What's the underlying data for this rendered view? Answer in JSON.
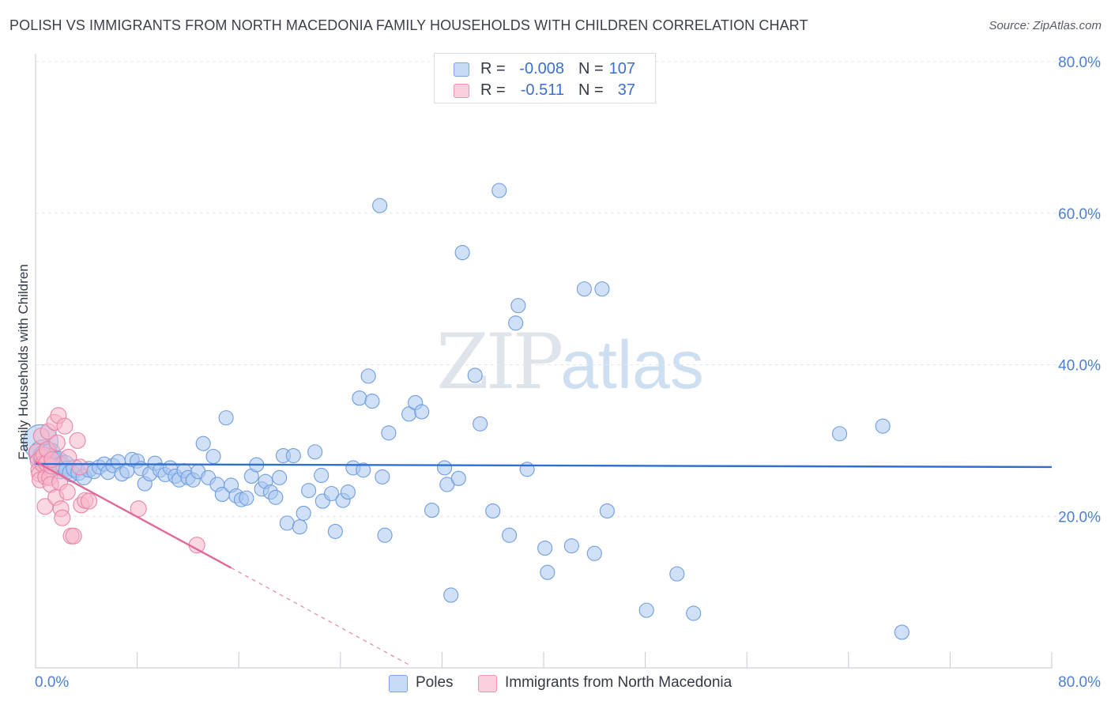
{
  "title": "POLISH VS IMMIGRANTS FROM NORTH MACEDONIA FAMILY HOUSEHOLDS WITH CHILDREN CORRELATION CHART",
  "source": "Source: ZipAtlas.com",
  "watermark": {
    "part1": "ZIP",
    "part2": "atlas"
  },
  "legend": {
    "rows": [
      {
        "r_label": "R =",
        "r_value": "-0.008",
        "n_label": "N =",
        "n_value": "107",
        "color": "#a9c6f0"
      },
      {
        "r_label": "R =",
        "r_value": "-0.511",
        "n_label": "N =",
        "n_value": "37",
        "color": "#f7b6cb"
      }
    ]
  },
  "bottom_legend": [
    {
      "label": "Poles",
      "color": "#a9c6f0"
    },
    {
      "label": "Immigrants from North Macedonia",
      "color": "#f7b6cb"
    }
  ],
  "chart_data": {
    "type": "scatter",
    "title": "POLISH VS IMMIGRANTS FROM NORTH MACEDONIA FAMILY HOUSEHOLDS WITH CHILDREN CORRELATION CHART",
    "xlabel": "",
    "ylabel": "Family Households with Children",
    "xlim": [
      0,
      80
    ],
    "ylim": [
      0,
      80
    ],
    "x_tick_labels": [
      "0.0%",
      "80.0%"
    ],
    "y_tick_labels": [
      {
        "value": 20,
        "label": "20.0%"
      },
      {
        "value": 40,
        "label": "40.0%"
      },
      {
        "value": 60,
        "label": "60.0%"
      },
      {
        "value": 80,
        "label": "80.0%"
      }
    ],
    "series": [
      {
        "name": "Poles",
        "color": "#a9c6f0",
        "stroke": "#6f9ddf",
        "trend": {
          "x": [
            0,
            80
          ],
          "y": [
            26.9,
            26.5
          ],
          "color": "#2f6fd2"
        },
        "points": [
          [
            0.4,
            29.8,
            22
          ],
          [
            0.6,
            28.2,
            18
          ],
          [
            0.8,
            27.8,
            16
          ],
          [
            1.0,
            27.5,
            14
          ],
          [
            1.2,
            28.4,
            12
          ],
          [
            1.5,
            27.0,
            14
          ],
          [
            1.8,
            27.3,
            12
          ],
          [
            2.0,
            26.4,
            14
          ],
          [
            2.3,
            26.8,
            12
          ],
          [
            2.5,
            26.1,
            11
          ],
          [
            2.8,
            25.7,
            11
          ],
          [
            3.1,
            26.3,
            11
          ],
          [
            3.4,
            25.8,
            10
          ],
          [
            3.8,
            25.2,
            10
          ],
          [
            4.2,
            26.2,
            10
          ],
          [
            4.6,
            25.9,
            9
          ],
          [
            5.0,
            26.5,
            9
          ],
          [
            5.4,
            26.9,
            9
          ],
          [
            5.7,
            25.8,
            9
          ],
          [
            6.1,
            26.7,
            9
          ],
          [
            6.5,
            27.2,
            9
          ],
          [
            6.8,
            25.6,
            9
          ],
          [
            7.2,
            26.0,
            9
          ],
          [
            7.6,
            27.5,
            9
          ],
          [
            8.0,
            27.3,
            9
          ],
          [
            8.3,
            26.3,
            9
          ],
          [
            8.6,
            24.3,
            9
          ],
          [
            9.0,
            25.6,
            9
          ],
          [
            9.4,
            27.0,
            9
          ],
          [
            9.8,
            26.1,
            9
          ],
          [
            10.2,
            25.5,
            9
          ],
          [
            10.6,
            26.4,
            9
          ],
          [
            11.0,
            25.3,
            9
          ],
          [
            11.3,
            24.8,
            9
          ],
          [
            11.7,
            26.0,
            9
          ],
          [
            12.0,
            25.1,
            9
          ],
          [
            12.4,
            24.8,
            9
          ],
          [
            12.8,
            25.9,
            9
          ],
          [
            13.2,
            29.6,
            9
          ],
          [
            13.6,
            25.1,
            9
          ],
          [
            14.0,
            27.9,
            9
          ],
          [
            14.3,
            24.2,
            9
          ],
          [
            14.7,
            22.9,
            9
          ],
          [
            15.0,
            33.0,
            9
          ],
          [
            15.4,
            24.1,
            9
          ],
          [
            15.8,
            22.7,
            9
          ],
          [
            16.2,
            22.2,
            9
          ],
          [
            16.6,
            22.4,
            9
          ],
          [
            17.0,
            25.3,
            9
          ],
          [
            17.4,
            26.8,
            9
          ],
          [
            17.8,
            23.6,
            9
          ],
          [
            18.1,
            24.6,
            9
          ],
          [
            18.5,
            23.2,
            9
          ],
          [
            18.9,
            22.5,
            9
          ],
          [
            19.2,
            25.1,
            9
          ],
          [
            19.5,
            28.0,
            9
          ],
          [
            19.8,
            19.1,
            9
          ],
          [
            20.3,
            28.0,
            9
          ],
          [
            20.8,
            18.6,
            9
          ],
          [
            21.1,
            20.4,
            9
          ],
          [
            21.5,
            23.4,
            9
          ],
          [
            22.0,
            28.5,
            9
          ],
          [
            22.5,
            25.4,
            9
          ],
          [
            22.6,
            22.0,
            9
          ],
          [
            23.3,
            23.0,
            9
          ],
          [
            23.6,
            18.0,
            9
          ],
          [
            24.2,
            22.1,
            9
          ],
          [
            24.6,
            23.2,
            9
          ],
          [
            25.0,
            26.4,
            9
          ],
          [
            25.5,
            35.6,
            9
          ],
          [
            25.8,
            26.1,
            9
          ],
          [
            26.2,
            38.5,
            9
          ],
          [
            26.5,
            35.2,
            9
          ],
          [
            27.3,
            25.2,
            9
          ],
          [
            27.5,
            17.5,
            9
          ],
          [
            27.1,
            61.0,
            9
          ],
          [
            27.8,
            31.0,
            9
          ],
          [
            29.4,
            33.5,
            9
          ],
          [
            29.9,
            35.0,
            9
          ],
          [
            30.4,
            33.8,
            9
          ],
          [
            31.2,
            20.8,
            9
          ],
          [
            32.2,
            26.4,
            9
          ],
          [
            32.4,
            24.2,
            9
          ],
          [
            32.7,
            9.6,
            9
          ],
          [
            33.3,
            25.0,
            9
          ],
          [
            33.6,
            54.8,
            9
          ],
          [
            34.6,
            38.6,
            9
          ],
          [
            35.0,
            32.2,
            9
          ],
          [
            36.0,
            20.7,
            9
          ],
          [
            36.5,
            63.0,
            9
          ],
          [
            37.3,
            17.5,
            9
          ],
          [
            37.8,
            45.5,
            9
          ],
          [
            38.0,
            47.8,
            9
          ],
          [
            38.7,
            26.2,
            9
          ],
          [
            40.1,
            15.8,
            9
          ],
          [
            40.3,
            12.6,
            9
          ],
          [
            42.2,
            16.1,
            9
          ],
          [
            43.2,
            50.0,
            9
          ],
          [
            44.0,
            15.1,
            9
          ],
          [
            44.6,
            50.0,
            9
          ],
          [
            45.0,
            20.7,
            9
          ],
          [
            48.1,
            7.6,
            9
          ],
          [
            50.5,
            12.4,
            9
          ],
          [
            51.8,
            7.2,
            9
          ],
          [
            63.3,
            30.9,
            9
          ],
          [
            66.7,
            31.9,
            9
          ],
          [
            68.2,
            4.7,
            9
          ]
        ]
      },
      {
        "name": "Immigrants from North Macedonia",
        "color": "#f7b6cb",
        "stroke": "#e885a6",
        "trend": {
          "x": [
            0,
            15.4
          ],
          "y": [
            27.2,
            13.2
          ],
          "dash_to": [
            29.4,
            0.4
          ],
          "color": "#e0699a"
        },
        "points": [
          [
            0.1,
            28.5,
            10
          ],
          [
            0.2,
            27.3,
            10
          ],
          [
            0.25,
            26.1,
            10
          ],
          [
            0.3,
            25.6,
            10
          ],
          [
            0.35,
            24.8,
            10
          ],
          [
            0.45,
            30.6,
            10
          ],
          [
            0.5,
            27.8,
            10
          ],
          [
            0.55,
            26.9,
            10
          ],
          [
            0.65,
            28.1,
            10
          ],
          [
            0.75,
            21.3,
            10
          ],
          [
            0.8,
            25.2,
            10
          ],
          [
            0.85,
            27.0,
            10
          ],
          [
            0.9,
            28.8,
            10
          ],
          [
            1.0,
            31.2,
            10
          ],
          [
            1.1,
            25.1,
            10
          ],
          [
            1.2,
            24.2,
            10
          ],
          [
            1.25,
            26.6,
            10
          ],
          [
            1.3,
            27.5,
            10
          ],
          [
            1.5,
            32.4,
            10
          ],
          [
            1.6,
            22.5,
            10
          ],
          [
            1.7,
            29.7,
            10
          ],
          [
            1.8,
            33.3,
            10
          ],
          [
            1.9,
            24.5,
            10
          ],
          [
            2.0,
            21.0,
            10
          ],
          [
            2.1,
            19.8,
            10
          ],
          [
            2.3,
            31.9,
            10
          ],
          [
            2.5,
            23.2,
            10
          ],
          [
            2.6,
            27.8,
            10
          ],
          [
            2.8,
            17.4,
            10
          ],
          [
            3.0,
            17.4,
            10
          ],
          [
            3.3,
            30.0,
            10
          ],
          [
            3.5,
            26.5,
            10
          ],
          [
            3.6,
            21.5,
            10
          ],
          [
            3.9,
            22.1,
            10
          ],
          [
            4.2,
            22.0,
            10
          ],
          [
            8.1,
            21.0,
            10
          ],
          [
            12.7,
            16.2,
            10
          ]
        ]
      }
    ]
  }
}
